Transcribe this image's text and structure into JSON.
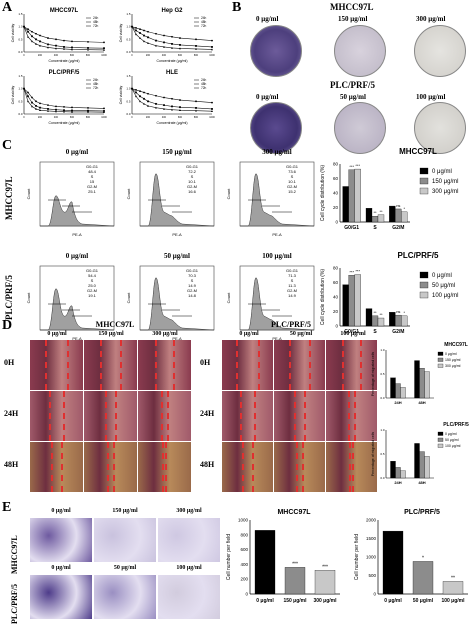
{
  "panelA": {
    "label": "A",
    "charts": [
      {
        "title": "MHCC97L",
        "ylabel": "Cell viability",
        "xlabel": "Concentrate (μg/ml)",
        "legend": [
          "24h",
          "48h",
          "72h"
        ]
      },
      {
        "title": "Hep G2",
        "ylabel": "Cell viability",
        "xlabel": "Concentrate (μg/ml)",
        "legend": [
          "24h",
          "48h",
          "72h"
        ]
      },
      {
        "title": "PLC/PRF/5",
        "ylabel": "Cell viability",
        "xlabel": "Concentrate (μg/ml)",
        "legend": [
          "24h",
          "48h",
          "72h"
        ]
      },
      {
        "title": "HLE",
        "ylabel": "Cell viability",
        "xlabel": "Concentrate (μg/ml)",
        "legend": [
          "24h",
          "48h",
          "72h"
        ]
      }
    ]
  },
  "panelB": {
    "label": "B",
    "row1": {
      "cell": "MHCC97L",
      "doses": [
        "0 μg/ml",
        "150 μg/ml",
        "300 μg/ml"
      ]
    },
    "row2": {
      "cell": "PLC/PRF/5",
      "doses": [
        "0 μg/ml",
        "50 μg/ml",
        "100 μg/ml"
      ]
    }
  },
  "panelC": {
    "label": "C",
    "row1": {
      "cell": "MHCC97L",
      "doses": [
        "0 μg/ml",
        "150 μg/ml",
        "300 μg/ml"
      ],
      "stats": [
        [
          "G0-G1",
          "48.4",
          "S",
          "15",
          "G2-M",
          "25.1"
        ],
        [
          "G0-G1",
          "72.2",
          "S",
          "10.1",
          "G2-M",
          "16.6"
        ],
        [
          "G0-G1",
          "73.6",
          "S",
          "10.1",
          "G2-M",
          "15.2"
        ]
      ],
      "bar_title": "MHCC97L",
      "bar_ylabel": "Cell cycle distribution (%)",
      "legend": [
        "0 μg/ml",
        "150 μg/ml",
        "300 μg/ml"
      ],
      "categories": [
        "G0/G1",
        "S",
        "G2/M"
      ],
      "sig": [
        "***",
        "***",
        "**",
        "**",
        "ns",
        "*"
      ]
    },
    "row2": {
      "cell": "PLC/PRF/5",
      "doses": [
        "0 μg/ml",
        "50 μg/ml",
        "100 μg/ml"
      ],
      "stats": [
        [
          "G0-G1",
          "54.4",
          "S",
          "25.0",
          "G2-M",
          "19.1"
        ],
        [
          "G0-G1",
          "70.3",
          "S",
          "14.9",
          "G2-M",
          "14.8"
        ],
        [
          "G0-G1",
          "71.3",
          "S",
          "11.3",
          "G2-M",
          "14.9"
        ]
      ],
      "bar_title": "PLC/PRF/5",
      "bar_ylabel": "Cell cycle distribution (%)",
      "legend": [
        "0 μg/ml",
        "50 μg/ml",
        "100 μg/ml"
      ],
      "categories": [
        "G0/G1",
        "S",
        "G2/M"
      ],
      "sig": [
        "***",
        "***",
        "**",
        "**",
        "ns",
        "*"
      ]
    },
    "axis_x": "PE-A",
    "axis_y": "Count"
  },
  "panelD": {
    "label": "D",
    "left": {
      "cell": "MHCC97L",
      "doses": [
        "0 μg/ml",
        "150 μg/ml",
        "300 μg/ml"
      ]
    },
    "right": {
      "cell": "PLC/PRF/5",
      "doses": [
        "0 μg/ml",
        "50 μg/ml",
        "100 μg/ml"
      ]
    },
    "times": [
      "0H",
      "24H",
      "48H"
    ],
    "chart1": {
      "title": "MHCC97L",
      "ylabel": "Percentage of migrated cells",
      "legend": [
        "0 μg/ml",
        "150 μg/ml",
        "300 μg/ml"
      ],
      "categories": [
        "24H",
        "48H"
      ]
    },
    "chart2": {
      "title": "PLC/PRF/5",
      "ylabel": "Percentage of migrated cells",
      "legend": [
        "0 μg/ml",
        "50 μg/ml",
        "100 μg/ml"
      ],
      "categories": [
        "24H",
        "48H"
      ]
    }
  },
  "panelE": {
    "label": "E",
    "row1": {
      "cell": "MHCC97L",
      "doses": [
        "0 μg/ml",
        "150 μg/ml",
        "300 μg/ml"
      ]
    },
    "row2": {
      "cell": "PLC/PRF/5",
      "doses": [
        "0 μg/ml",
        "50 μg/ml",
        "100 μg/ml"
      ]
    },
    "chart1": {
      "title": "MHCC97L",
      "ylabel": "Cell number per field",
      "categories": [
        "0 μg/ml",
        "150 μg/ml",
        "300 μg/ml"
      ],
      "sig": [
        "***",
        "***"
      ]
    },
    "chart2": {
      "title": "PLC/PRF/5",
      "ylabel": "Cell number per field",
      "categories": [
        "0 μg/ml",
        "50 μg/ml",
        "100 μg/ml"
      ],
      "sig": [
        "*",
        "**"
      ]
    }
  },
  "chart_data": [
    {
      "type": "line",
      "title": "MHCC97L",
      "xlabel": "Concentrate (μg/ml)",
      "ylabel": "Cell viability",
      "ylim": [
        0,
        1.5
      ],
      "x": [
        0,
        50,
        100,
        150,
        200,
        300,
        400,
        500,
        600,
        800,
        1000
      ],
      "series": [
        {
          "name": "24h",
          "values": [
            1.0,
            0.9,
            0.8,
            0.72,
            0.65,
            0.55,
            0.5,
            0.45,
            0.42,
            0.4,
            0.38
          ]
        },
        {
          "name": "48h",
          "values": [
            1.0,
            0.8,
            0.62,
            0.5,
            0.42,
            0.3,
            0.25,
            0.2,
            0.18,
            0.16,
            0.15
          ]
        },
        {
          "name": "72h",
          "values": [
            1.0,
            0.6,
            0.42,
            0.32,
            0.25,
            0.18,
            0.14,
            0.12,
            0.1,
            0.09,
            0.08
          ]
        }
      ]
    },
    {
      "type": "line",
      "title": "Hep G2",
      "xlabel": "Concentrate (μg/ml)",
      "ylabel": "Cell viability",
      "ylim": [
        0,
        1.5
      ],
      "x": [
        0,
        50,
        100,
        150,
        200,
        300,
        400,
        500,
        600,
        800,
        1000
      ],
      "series": [
        {
          "name": "24h",
          "values": [
            1.0,
            0.95,
            0.9,
            0.85,
            0.8,
            0.72,
            0.65,
            0.6,
            0.55,
            0.5,
            0.45
          ]
        },
        {
          "name": "48h",
          "values": [
            1.0,
            0.85,
            0.75,
            0.65,
            0.58,
            0.45,
            0.38,
            0.32,
            0.28,
            0.24,
            0.2
          ]
        },
        {
          "name": "72h",
          "values": [
            1.0,
            0.7,
            0.55,
            0.42,
            0.35,
            0.25,
            0.2,
            0.16,
            0.14,
            0.12,
            0.1
          ]
        }
      ]
    },
    {
      "type": "line",
      "title": "PLC/PRF/5",
      "xlabel": "Concentrate (μg/ml)",
      "ylabel": "Cell viability",
      "ylim": [
        0,
        1.5
      ],
      "x": [
        0,
        50,
        100,
        150,
        200,
        300,
        400,
        500,
        600,
        800,
        1000
      ],
      "series": [
        {
          "name": "24h",
          "values": [
            1.0,
            0.85,
            0.65,
            0.5,
            0.42,
            0.35,
            0.3,
            0.28,
            0.26,
            0.24,
            0.22
          ]
        },
        {
          "name": "48h",
          "values": [
            1.0,
            0.7,
            0.45,
            0.32,
            0.25,
            0.2,
            0.17,
            0.15,
            0.14,
            0.13,
            0.12
          ]
        },
        {
          "name": "72h",
          "values": [
            1.0,
            0.5,
            0.3,
            0.2,
            0.15,
            0.12,
            0.1,
            0.09,
            0.08,
            0.08,
            0.07
          ]
        }
      ]
    },
    {
      "type": "line",
      "title": "HLE",
      "xlabel": "Concentrate (μg/ml)",
      "ylabel": "Cell viability",
      "ylim": [
        0,
        1.5
      ],
      "x": [
        0,
        50,
        100,
        150,
        200,
        300,
        400,
        500,
        600,
        800,
        1000
      ],
      "series": [
        {
          "name": "24h",
          "values": [
            1.0,
            0.95,
            0.9,
            0.85,
            0.8,
            0.72,
            0.65,
            0.6,
            0.55,
            0.5,
            0.45
          ]
        },
        {
          "name": "48h",
          "values": [
            1.0,
            0.85,
            0.7,
            0.6,
            0.5,
            0.4,
            0.35,
            0.3,
            0.27,
            0.24,
            0.2
          ]
        },
        {
          "name": "72h",
          "values": [
            1.0,
            0.7,
            0.5,
            0.4,
            0.32,
            0.25,
            0.2,
            0.17,
            0.15,
            0.13,
            0.11
          ]
        }
      ]
    },
    {
      "type": "bar",
      "title": "MHCC97L",
      "ylabel": "Cell cycle distribution (%)",
      "ylim": [
        0,
        80
      ],
      "categories": [
        "G0/G1",
        "S",
        "G2/M"
      ],
      "series": [
        {
          "name": "0 μg/ml",
          "values": [
            49,
            19,
            22
          ]
        },
        {
          "name": "150 μg/ml",
          "values": [
            72,
            8,
            18
          ]
        },
        {
          "name": "300 μg/ml",
          "values": [
            73,
            10,
            14
          ]
        }
      ]
    },
    {
      "type": "bar",
      "title": "PLC/PRF/5",
      "ylabel": "Cell cycle distribution (%)",
      "ylim": [
        0,
        80
      ],
      "categories": [
        "G0/G1",
        "S",
        "G2/M"
      ],
      "series": [
        {
          "name": "0 μg/ml",
          "values": [
            57,
            24,
            19
          ]
        },
        {
          "name": "50 μg/ml",
          "values": [
            70,
            14,
            15
          ]
        },
        {
          "name": "100 μg/ml",
          "values": [
            71,
            11,
            14
          ]
        }
      ]
    },
    {
      "type": "bar",
      "title": "MHCC97L",
      "ylabel": "Percentage of migrated cells",
      "ylim": [
        0,
        1
      ],
      "categories": [
        "24H",
        "48H"
      ],
      "series": [
        {
          "name": "0 μg/ml",
          "values": [
            0.42,
            0.78
          ]
        },
        {
          "name": "150 μg/ml",
          "values": [
            0.3,
            0.62
          ]
        },
        {
          "name": "300 μg/ml",
          "values": [
            0.22,
            0.55
          ]
        }
      ]
    },
    {
      "type": "bar",
      "title": "PLC/PRF/5",
      "ylabel": "Percentage of migrated cells",
      "ylim": [
        0,
        1
      ],
      "categories": [
        "24H",
        "48H"
      ],
      "series": [
        {
          "name": "0 μg/ml",
          "values": [
            0.35,
            0.72
          ]
        },
        {
          "name": "50 μg/ml",
          "values": [
            0.22,
            0.55
          ]
        },
        {
          "name": "100 μg/ml",
          "values": [
            0.15,
            0.45
          ]
        }
      ]
    },
    {
      "type": "bar",
      "title": "MHCC97L",
      "ylabel": "Cell number per field",
      "ylim": [
        0,
        1000
      ],
      "categories": [
        "0 μg/ml",
        "150 μg/ml",
        "300 μg/ml"
      ],
      "values": [
        860,
        360,
        320
      ]
    },
    {
      "type": "bar",
      "title": "PLC/PRF/5",
      "ylabel": "Cell number per field",
      "ylim": [
        0,
        2000
      ],
      "categories": [
        "0 μg/ml",
        "50 μg/ml",
        "100 μg/ml"
      ],
      "values": [
        1700,
        880,
        340
      ]
    }
  ]
}
